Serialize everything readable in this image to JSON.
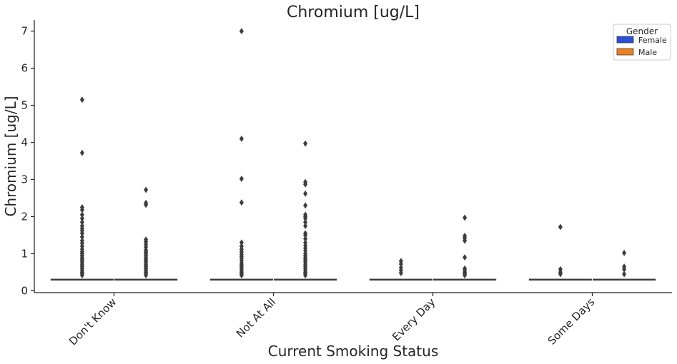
{
  "chart_data": {
    "type": "box",
    "title": "Chromium [ug/L]",
    "xlabel": "Current Smoking Status",
    "ylabel": "Chromium [ug/L]",
    "ylim": [
      -0.05,
      7.3
    ],
    "yticks": [
      0,
      1,
      2,
      3,
      4,
      5,
      6,
      7
    ],
    "categories": [
      "Don't Know",
      "Not At All",
      "Every Day",
      "Some Days"
    ],
    "grid": false,
    "legend": {
      "title": "Gender",
      "position": "top-right",
      "entries": [
        {
          "name": "Female",
          "color": "#2a4fd8"
        },
        {
          "name": "Male",
          "color": "#ec7f22"
        }
      ]
    },
    "series": [
      {
        "name": "Female",
        "color": "#2a4fd8",
        "median": [
          0.3,
          0.3,
          0.3,
          0.3
        ],
        "outliers": [
          [
            5.15,
            3.72,
            2.25,
            2.18,
            2.05,
            1.95,
            1.85,
            1.75,
            1.68,
            1.62,
            1.55,
            1.45,
            1.35,
            1.28,
            1.2,
            1.12,
            1.05,
            1.0,
            0.95,
            0.9,
            0.85,
            0.8,
            0.75,
            0.7,
            0.65,
            0.6,
            0.55,
            0.5,
            0.46,
            0.42
          ],
          [
            7.0,
            4.1,
            3.02,
            2.38,
            1.3,
            1.2,
            1.12,
            1.05,
            0.98,
            0.93,
            0.88,
            0.82,
            0.75,
            0.7,
            0.65,
            0.6,
            0.55,
            0.5,
            0.46,
            0.42
          ],
          [
            0.8,
            0.72,
            0.62,
            0.55,
            0.48
          ],
          [
            1.72,
            0.58,
            0.5,
            0.45
          ]
        ]
      },
      {
        "name": "Male",
        "color": "#ec7f22",
        "median": [
          0.3,
          0.3,
          0.3,
          0.3
        ],
        "outliers": [
          [
            2.72,
            2.37,
            2.32,
            1.38,
            1.32,
            1.25,
            1.18,
            1.1,
            1.05,
            1.0,
            0.95,
            0.9,
            0.85,
            0.8,
            0.75,
            0.7,
            0.65,
            0.6,
            0.55,
            0.5,
            0.46,
            0.42
          ],
          [
            3.97,
            2.93,
            2.87,
            2.62,
            2.3,
            2.05,
            2.0,
            1.95,
            1.85,
            1.75,
            1.55,
            1.5,
            1.4,
            1.3,
            1.22,
            1.15,
            1.08,
            1.0,
            0.95,
            0.9,
            0.85,
            0.8,
            0.75,
            0.7,
            0.65,
            0.6,
            0.55,
            0.5,
            0.46,
            0.42
          ],
          [
            1.97,
            1.48,
            1.42,
            1.35,
            0.9,
            0.6,
            0.55,
            0.5,
            0.46,
            0.42
          ],
          [
            1.02,
            0.65,
            0.58,
            0.45
          ]
        ]
      }
    ]
  }
}
